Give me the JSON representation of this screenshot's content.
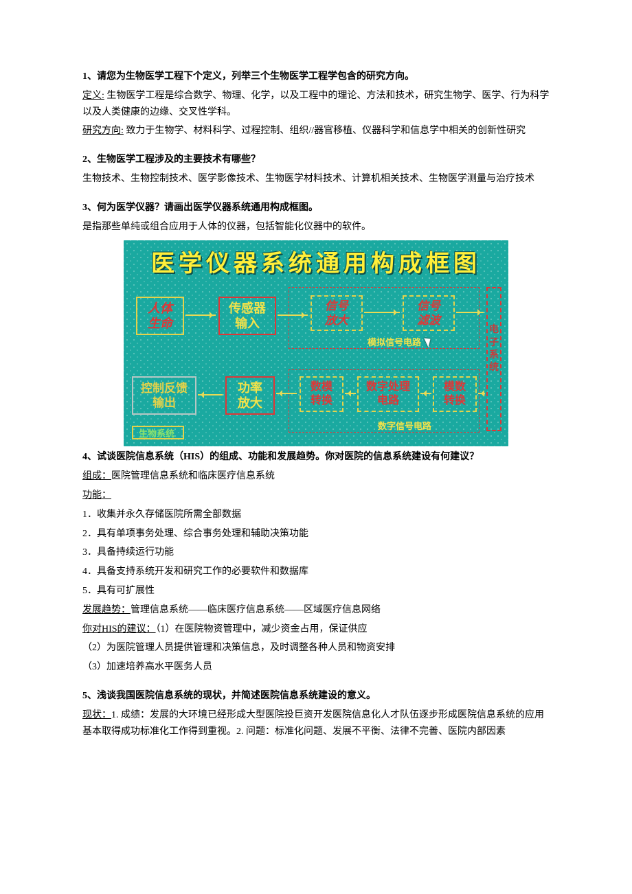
{
  "q1": {
    "title": "1、请您为生物医学工程下个定义，列举三个生物医学工程学包含的研究方向。",
    "def_label": "定义:",
    "def_text": " 生物医学工程是综合数学、物理、化学，以及工程中的理论、方法和技术，研究生物学、医学、行为科学以及人类健康的边缘、交叉性学科。",
    "dir_label": "研究方向:",
    "dir_text": " 致力于生物学、材料科学、过程控制、组织//器官移植、仪器科学和信息学中相关的创新性研究"
  },
  "q2": {
    "title": "2、生物医学工程涉及的主要技术有哪些？",
    "text": "生物技术、生物控制技术、医学影像技术、生物医学材料技术、计算机相关技术、生物医学测量与治疗技术"
  },
  "q3": {
    "title": "3、何为医学仪器？请画出医学仪器系统通用构成框图。",
    "text": "是指那些单纯或组合应用于人体的仪器，包括智能化仪器中的软件。"
  },
  "diagram": {
    "title": "医学仪器系统通用构成框图",
    "bg_color": "#1aa9a0",
    "title_color": "#ffef3a",
    "border_yellow": "#e5d24a",
    "border_red": "#e03636",
    "text_red": "#e03636",
    "text_yellow": "#f2e24a",
    "text_green": "#8fe36a",
    "top_row": {
      "human": {
        "l1": "人体",
        "l2": "生命"
      },
      "sensor": {
        "l1": "传感器",
        "l2": "输入"
      },
      "amp": {
        "l1": "信号",
        "l2": "放大"
      },
      "filter": {
        "l1": "信号",
        "l2": "滤波"
      }
    },
    "bot_row": {
      "feedback": {
        "l1": "控制反馈",
        "l2": "输出"
      },
      "power": {
        "l1": "功率",
        "l2": "放大"
      },
      "dac": {
        "l1": "数模",
        "l2": "转换"
      },
      "dsp": {
        "l1": "数字处理",
        "l2": "电路"
      },
      "adc": {
        "l1": "模数",
        "l2": "转换"
      }
    },
    "region_analog": "模拟信号电路",
    "region_digital": "数字信号电路",
    "side_label": "电子系统",
    "bio_label": "生物系统"
  },
  "q4": {
    "title": "4、试谈医院信息系统（HIS）的组成、功能和发展趋势。你对医院的信息系统建设有何建议？",
    "comp_label": "组成：",
    "comp_text": "医院管理信息系统和临床医疗信息系统",
    "func_label": "功能：",
    "func": [
      "1．收集并永久存储医院所需全部数据",
      "2．具有单项事务处理、综合事务处理和辅助决策功能",
      "3．具备持续运行功能",
      "4．具备支持系统开发和研究工作的必要软件和数据库",
      "5．具有可扩展性"
    ],
    "trend_label": "发展趋势：",
    "trend_text": "管理信息系统——临床医疗信息系统——区域医疗信息网络",
    "sugg_label": "你对HIS的建议：",
    "sugg1": "（1）在医院物资管理中，减少资金占用，保证供应",
    "sugg2": "（2）为医院管理人员提供管理和决策信息，及时调整各种人员和物资安排",
    "sugg3": "（3）加速培养高水平医务人员"
  },
  "q5": {
    "title": "5、浅谈我国医院信息系统的现状，并简述医院信息系统建设的意义。",
    "status_label": "现状：",
    "status_text": "1. 成绩：发展的大环境已经形成大型医院投巨资开发医院信息化人才队伍逐步形成医院信息系统的应用基本取得成功标准化工作得到重视。2. 问题：标准化问题、发展不平衡、法律不完善、医院内部因素"
  }
}
